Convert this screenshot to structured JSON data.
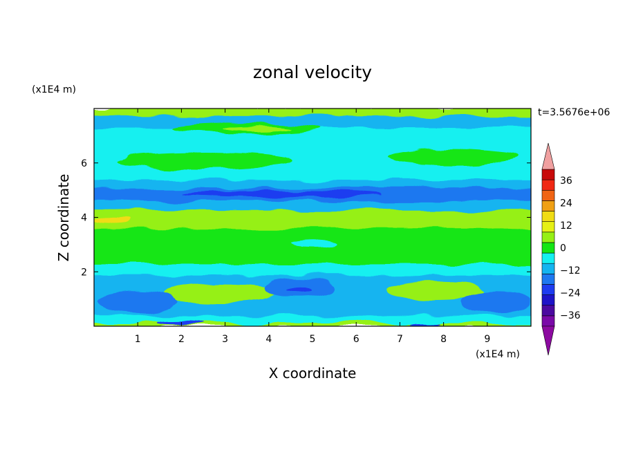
{
  "chart_data": {
    "type": "heatmap",
    "title": "zonal velocity",
    "xlabel": "X coordinate",
    "ylabel": "Z coordinate",
    "x_unit_label": "(x1E4 m)",
    "y_unit_label": "(x1E4 m)",
    "time_label": "t=3.5676e+06",
    "xlim": [
      0,
      10
    ],
    "ylim": [
      0,
      8
    ],
    "x_ticks": [
      1,
      2,
      3,
      4,
      5,
      6,
      7,
      8,
      9
    ],
    "y_ticks": [
      2,
      4,
      6
    ],
    "colorbar": {
      "levels": [
        -42,
        -36,
        -30,
        -24,
        -18,
        -12,
        -6,
        0,
        6,
        12,
        18,
        24,
        30,
        36,
        42
      ],
      "colors": [
        "#7a0aa8",
        "#4b0aa0",
        "#1e14c8",
        "#1e3cf0",
        "#1e78f0",
        "#14b4f0",
        "#14f0f0",
        "#14e614",
        "#96f014",
        "#e6f014",
        "#f0dc14",
        "#f0a014",
        "#f06414",
        "#f02814",
        "#c80a0a"
      ],
      "under_color": "#8c0aa0",
      "over_color": "#f0a0a0",
      "tick_values": [
        36,
        24,
        12,
        0,
        -12,
        -24,
        -36
      ],
      "tick_labels": [
        "36",
        "24",
        "12",
        "0",
        "−12",
        "−24",
        "−36"
      ],
      "extend": "both"
    },
    "bands": [
      {
        "z": [
          0.0,
          0.15
        ],
        "value": 8
      },
      {
        "z": [
          0.15,
          0.4
        ],
        "value": -2
      },
      {
        "z": [
          0.4,
          1.9
        ],
        "value": -8
      },
      {
        "z": [
          1.9,
          2.3
        ],
        "value": -2
      },
      {
        "z": [
          2.3,
          3.6
        ],
        "value": 3
      },
      {
        "z": [
          3.6,
          4.3
        ],
        "value": 9
      },
      {
        "z": [
          4.3,
          4.6
        ],
        "value": -10
      },
      {
        "z": [
          4.6,
          5.1
        ],
        "value": -16
      },
      {
        "z": [
          5.1,
          5.4
        ],
        "value": -9
      },
      {
        "z": [
          5.4,
          6.7
        ],
        "value": -2
      },
      {
        "z": [
          6.7,
          7.3
        ],
        "value": -6
      },
      {
        "z": [
          7.3,
          7.75
        ],
        "value": -9
      },
      {
        "z": [
          7.75,
          8.0
        ],
        "value": 8
      }
    ],
    "blobs": [
      {
        "x": 2.9,
        "z": 1.2,
        "rx": 1.3,
        "rz": 0.35,
        "value": 6
      },
      {
        "x": 2.5,
        "z": 1.3,
        "rx": 0.6,
        "rz": 0.15,
        "value": 10
      },
      {
        "x": 7.8,
        "z": 1.3,
        "rx": 1.1,
        "rz": 0.3,
        "value": 6
      },
      {
        "x": 8.0,
        "z": 1.35,
        "rx": 0.4,
        "rz": 0.1,
        "value": 10
      },
      {
        "x": 4.7,
        "z": 1.4,
        "rx": 0.8,
        "rz": 0.35,
        "value": -14
      },
      {
        "x": 4.7,
        "z": 1.35,
        "rx": 0.3,
        "rz": 0.1,
        "value": -19
      },
      {
        "x": 1.0,
        "z": 0.9,
        "rx": 0.9,
        "rz": 0.4,
        "value": -13
      },
      {
        "x": 9.2,
        "z": 0.9,
        "rx": 0.8,
        "rz": 0.4,
        "value": -13
      },
      {
        "x": 2.0,
        "z": 0.08,
        "rx": 0.5,
        "rz": 0.08,
        "value": -19
      },
      {
        "x": 7.6,
        "z": 0.08,
        "rx": 0.4,
        "rz": 0.08,
        "value": -22
      },
      {
        "x": 3.5,
        "z": 7.25,
        "rx": 1.7,
        "rz": 0.2,
        "value": 3
      },
      {
        "x": 3.7,
        "z": 7.25,
        "rx": 0.8,
        "rz": 0.1,
        "value": 8
      },
      {
        "x": 0.4,
        "z": 3.9,
        "rx": 0.4,
        "rz": 0.12,
        "value": 20
      },
      {
        "x": 4.3,
        "z": 4.85,
        "rx": 2.3,
        "rz": 0.12,
        "value": -21
      },
      {
        "x": 5.0,
        "z": 3.05,
        "rx": 0.5,
        "rz": 0.12,
        "value": -2
      },
      {
        "x": 2.5,
        "z": 6.1,
        "rx": 2.0,
        "rz": 0.3,
        "value": 2
      },
      {
        "x": 8.2,
        "z": 6.2,
        "rx": 1.5,
        "rz": 0.3,
        "value": 1
      }
    ]
  }
}
